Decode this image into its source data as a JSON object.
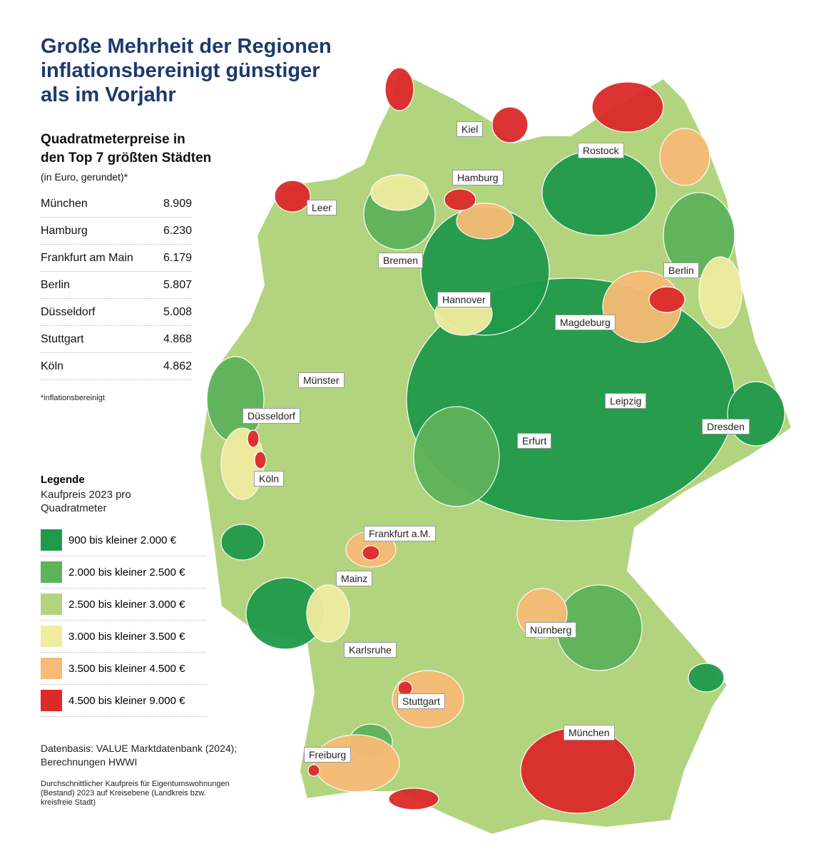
{
  "title": "Große Mehrheit der Regionen inflationsbereinigt günstiger als im Vorjahr",
  "table": {
    "title": "Quadratmeterpreise in den Top 7 größten Städten",
    "unit": "(in Euro, gerundet)*",
    "rows": [
      [
        "München",
        "8.909"
      ],
      [
        "Hamburg",
        "6.230"
      ],
      [
        "Frankfurt am Main",
        "6.179"
      ],
      [
        "Berlin",
        "5.807"
      ],
      [
        "Düsseldorf",
        "5.008"
      ],
      [
        "Stuttgart",
        "4.868"
      ],
      [
        "Köln",
        "4.862"
      ]
    ],
    "footnote": "*inflationsbereinigt"
  },
  "legend": {
    "title": "Legende",
    "subtitle": "Kaufpreis 2023 pro Quadratmeter",
    "items": [
      {
        "label": "900 bis kleiner 2.000 €",
        "color": "#1f9a4a"
      },
      {
        "label": "2.000 bis kleiner 2.500 €",
        "color": "#5db35a"
      },
      {
        "label": "2.500 bis kleiner 3.000 €",
        "color": "#b3d47e"
      },
      {
        "label": "3.000 bis kleiner 3.500 €",
        "color": "#f0eca0"
      },
      {
        "label": "3.500 bis kleiner 4.500 €",
        "color": "#f7bb76"
      },
      {
        "label": "4.500 bis kleiner 9.000 €",
        "color": "#dc2a2a"
      }
    ]
  },
  "source": "Datenbasis: VALUE Marktdatenbank (2024); Berechnungen HWWI",
  "note": "Durchschnittlicher Kaufpreis für Eigentumswohnungen (Bestand) 2023 auf Kreisebene (Landkreis bzw. kreisfreie Stadt)",
  "cities": [
    "Kiel",
    "Rostock",
    "Hamburg",
    "Leer",
    "Bremen",
    "Berlin",
    "Hannover",
    "Magdeburg",
    "Münster",
    "Leipzig",
    "Düsseldorf",
    "Dresden",
    "Erfurt",
    "Köln",
    "Frankfurt a.M.",
    "Mainz",
    "Nürnberg",
    "Karlsruhe",
    "Stuttgart",
    "München",
    "Freiburg"
  ]
}
